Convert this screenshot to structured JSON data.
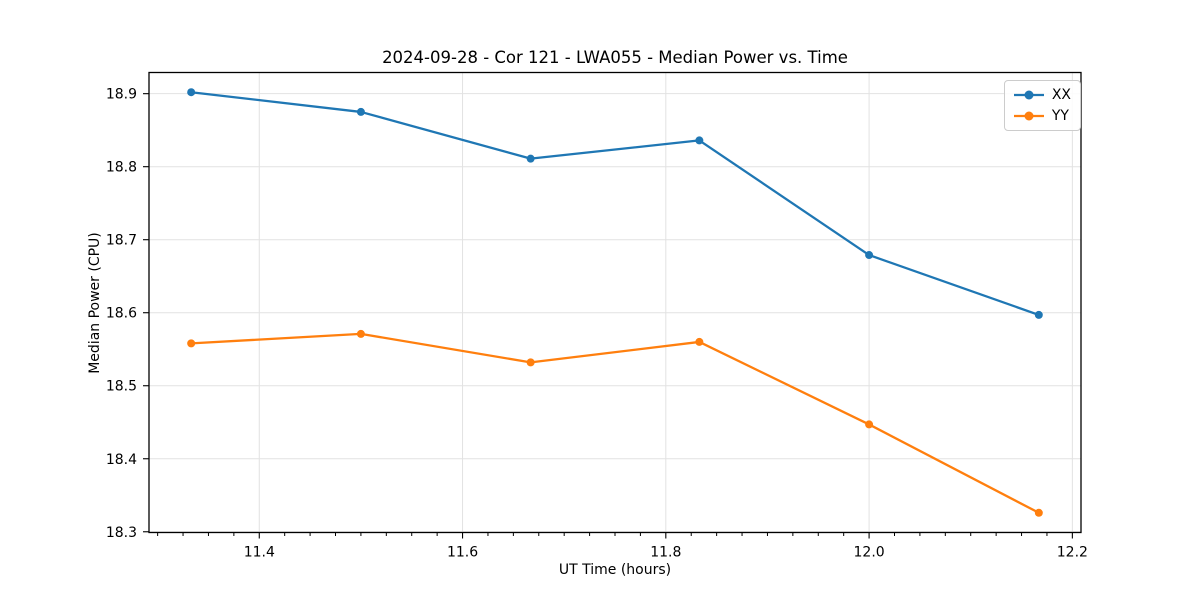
{
  "figure": {
    "background": "#ffffff",
    "text_color": "#000000"
  },
  "chart_data": {
    "type": "line",
    "title": "2024-09-28 - Cor 121 - LWA055 - Median Power vs. Time",
    "xlabel": "UT Time (hours)",
    "ylabel": "Median Power (CPU)",
    "x": [
      11.333,
      11.5,
      11.667,
      11.833,
      12.0,
      12.167
    ],
    "series": [
      {
        "name": "XX",
        "color": "#1f77b4",
        "values": [
          18.902,
          18.875,
          18.811,
          18.836,
          18.679,
          18.597
        ]
      },
      {
        "name": "YY",
        "color": "#ff7f0e",
        "values": [
          18.558,
          18.571,
          18.532,
          18.56,
          18.447,
          18.326
        ]
      }
    ],
    "xlim": [
      11.2915,
      12.2085
    ],
    "ylim": [
      18.299,
      18.929
    ],
    "xticks": {
      "values": [
        11.4,
        11.6,
        11.8,
        12.0,
        12.2
      ],
      "labels": [
        "11.4",
        "11.6",
        "11.8",
        "12.0",
        "12.2"
      ]
    },
    "yticks": {
      "values": [
        18.3,
        18.4,
        18.5,
        18.6,
        18.7,
        18.8,
        18.9
      ],
      "labels": [
        "18.3",
        "18.4",
        "18.5",
        "18.6",
        "18.7",
        "18.8",
        "18.9"
      ]
    },
    "x_minor_tick_step": 0.025,
    "grid": true,
    "grid_color": "#e2e2e2",
    "axis_color": "#000000",
    "marker": "circle",
    "marker_radius": 4,
    "line_width": 2.3,
    "legend": {
      "position": "upper right",
      "entries": [
        "XX",
        "YY"
      ]
    }
  }
}
